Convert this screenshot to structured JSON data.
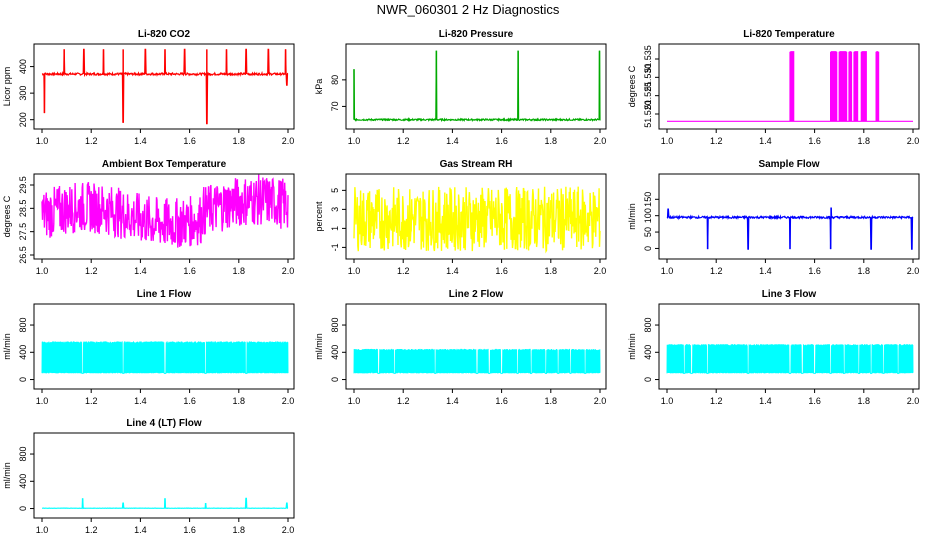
{
  "page": {
    "title": "NWR_060301 2 Hz Diagnostics"
  },
  "chart_data": [
    {
      "id": "co2",
      "type": "line",
      "title": "Li-820 CO2",
      "ylabel": "Licor ppm",
      "color": "#ff0000",
      "xlim": [
        1.0,
        2.0
      ],
      "ylim": [
        180,
        470
      ],
      "yticks": [
        200,
        300,
        400
      ],
      "xticks": [
        "1.0",
        "1.2",
        "1.4",
        "1.6",
        "1.8",
        "2.0"
      ],
      "baseline": 372,
      "noise": 4,
      "spikes_up": [
        [
          1.09,
          465
        ],
        [
          1.17,
          465
        ],
        [
          1.25,
          465
        ],
        [
          1.33,
          465
        ],
        [
          1.42,
          465
        ],
        [
          1.5,
          465
        ],
        [
          1.58,
          465
        ],
        [
          1.67,
          465
        ],
        [
          1.75,
          465
        ],
        [
          1.83,
          465
        ],
        [
          1.92,
          465
        ],
        [
          1.99,
          465
        ]
      ],
      "spikes_down": [
        [
          1.01,
          225
        ],
        [
          1.33,
          190
        ],
        [
          1.67,
          185
        ],
        [
          1.995,
          330
        ]
      ]
    },
    {
      "id": "pressure",
      "type": "line",
      "title": "Li-820 Pressure",
      "ylabel": "kPa",
      "color": "#00aa00",
      "xlim": [
        1.0,
        2.0
      ],
      "ylim": [
        63,
        92
      ],
      "yticks": [
        70,
        80
      ],
      "xticks": [
        "1.0",
        "1.2",
        "1.4",
        "1.6",
        "1.8",
        "2.0"
      ],
      "baseline": 65,
      "noise": 0.3,
      "spikes_up": [
        [
          1.0,
          84
        ],
        [
          1.335,
          91
        ],
        [
          1.667,
          91
        ],
        [
          1.998,
          91
        ]
      ]
    },
    {
      "id": "temperature",
      "type": "line",
      "title": "Li-820 Temperature",
      "ylabel": "degrees C",
      "color": "#ff00ff",
      "xlim": [
        1.0,
        2.0
      ],
      "ylim": [
        51.517,
        51.538
      ],
      "yticks": [
        51.52,
        51.525,
        51.53,
        51.535
      ],
      "ytick_labels": [
        "51.520",
        "51.525",
        "51.530",
        "51.535"
      ],
      "xticks": [
        "1.0",
        "1.2",
        "1.4",
        "1.6",
        "1.8",
        "2.0"
      ],
      "baseline": 51.518,
      "steps": [
        [
          1.5,
          1.515
        ],
        [
          1.665,
          1.69
        ],
        [
          1.7,
          1.73
        ],
        [
          1.74,
          1.75
        ],
        [
          1.76,
          1.775
        ],
        [
          1.79,
          1.81
        ],
        [
          1.85,
          1.86
        ]
      ],
      "step_high": 51.537
    },
    {
      "id": "box_temp",
      "type": "line",
      "title": "Ambient Box Temperature",
      "ylabel": "degrees C",
      "color": "#ff00ff",
      "xlim": [
        1.0,
        2.0
      ],
      "ylim": [
        26.5,
        29.8
      ],
      "yticks": [
        26.5,
        27.5,
        28.5,
        29.5
      ],
      "xticks": [
        "1.0",
        "1.2",
        "1.4",
        "1.6",
        "1.8",
        "2.0"
      ],
      "baseline": 28.2,
      "noise": 1.1
    },
    {
      "id": "rh",
      "type": "line",
      "title": "Gas Stream RH",
      "ylabel": "percent",
      "color": "#ffff00",
      "xlim": [
        1.0,
        2.0
      ],
      "ylim": [
        -1.8,
        6.3
      ],
      "yticks": [
        -1,
        1,
        3,
        5
      ],
      "xticks": [
        "1.0",
        "1.2",
        "1.4",
        "1.6",
        "1.8",
        "2.0"
      ],
      "baseline": 2.0,
      "noise": 3.4
    },
    {
      "id": "sample_flow",
      "type": "line",
      "title": "Sample Flow",
      "ylabel": "ml/min",
      "color": "#0000ff",
      "xlim": [
        1.0,
        2.0
      ],
      "ylim": [
        -20,
        215
      ],
      "yticks": [
        0,
        50,
        100,
        150
      ],
      "xticks": [
        "1.0",
        "1.2",
        "1.4",
        "1.6",
        "1.8",
        "2.0"
      ],
      "baseline": 95,
      "noise": 3,
      "spikes_down": [
        [
          1.165,
          -2
        ],
        [
          1.33,
          -2
        ],
        [
          1.5,
          -2
        ],
        [
          1.665,
          -2
        ],
        [
          1.83,
          -2
        ],
        [
          1.995,
          -2
        ]
      ],
      "spikes_up": [
        [
          1.005,
          120
        ],
        [
          1.667,
          125
        ]
      ]
    },
    {
      "id": "line1",
      "type": "line",
      "title": "Line 1 Flow",
      "ylabel": "ml/min",
      "color": "#00ffff",
      "xlim": [
        1.0,
        2.0
      ],
      "ylim": [
        -80,
        1050
      ],
      "yticks": [
        0,
        400,
        800
      ],
      "xticks": [
        "1.0",
        "1.2",
        "1.4",
        "1.6",
        "1.8",
        "2.0"
      ],
      "band": [
        90,
        560
      ],
      "gaps": [
        1.165,
        1.33,
        1.5,
        1.665,
        1.83
      ]
    },
    {
      "id": "line2",
      "type": "line",
      "title": "Line 2 Flow",
      "ylabel": "ml/min",
      "color": "#00ffff",
      "xlim": [
        1.0,
        2.0
      ],
      "ylim": [
        -80,
        1050
      ],
      "yticks": [
        0,
        400,
        800
      ],
      "xticks": [
        "1.0",
        "1.2",
        "1.4",
        "1.6",
        "1.8",
        "2.0"
      ],
      "band": [
        90,
        450
      ],
      "gaps": [
        1.1,
        1.165,
        1.33,
        1.5,
        1.55,
        1.6,
        1.665,
        1.72,
        1.78,
        1.83,
        1.88,
        1.94
      ]
    },
    {
      "id": "line3",
      "type": "line",
      "title": "Line 3 Flow",
      "ylabel": "ml/min",
      "color": "#00ffff",
      "xlim": [
        1.0,
        2.0
      ],
      "ylim": [
        -80,
        1050
      ],
      "yticks": [
        0,
        400,
        800
      ],
      "xticks": [
        "1.0",
        "1.2",
        "1.4",
        "1.6",
        "1.8",
        "2.0"
      ],
      "band": [
        90,
        520
      ],
      "gaps": [
        1.07,
        1.1,
        1.165,
        1.33,
        1.5,
        1.55,
        1.6,
        1.665,
        1.72,
        1.78,
        1.83,
        1.88,
        1.94
      ]
    },
    {
      "id": "line4",
      "type": "line",
      "title": "Line 4 (LT) Flow",
      "ylabel": "ml/min",
      "color": "#00ffff",
      "xlim": [
        1.0,
        2.0
      ],
      "ylim": [
        -80,
        1050
      ],
      "yticks": [
        0,
        400,
        800
      ],
      "xticks": [
        "1.0",
        "1.2",
        "1.4",
        "1.6",
        "1.8",
        "2.0"
      ],
      "baseline": 5,
      "noise": 2,
      "spikes_up": [
        [
          1.165,
          150
        ],
        [
          1.33,
          80
        ],
        [
          1.5,
          150
        ],
        [
          1.665,
          80
        ],
        [
          1.83,
          150
        ],
        [
          1.995,
          80
        ]
      ]
    }
  ]
}
